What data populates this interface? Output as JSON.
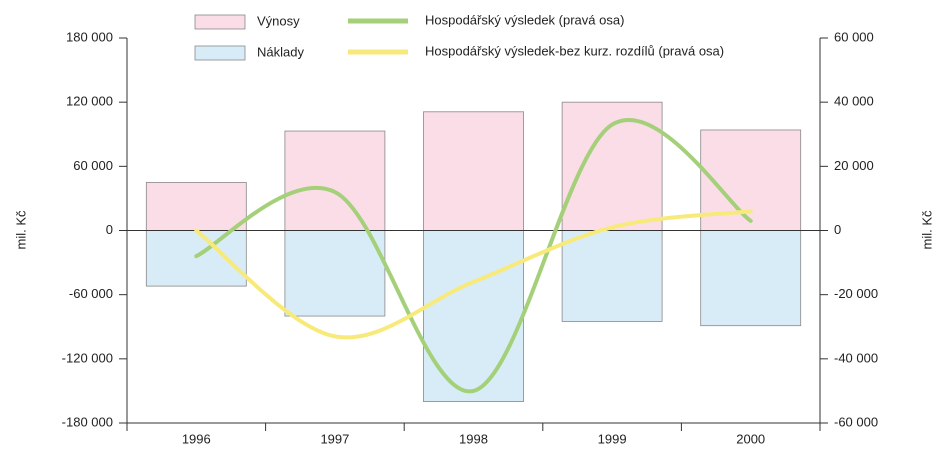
{
  "chart_data": {
    "type": "bar_line",
    "categories": [
      "1996",
      "1997",
      "1998",
      "1999",
      "2000"
    ],
    "series": [
      {
        "name": "Výnosy",
        "type": "bar",
        "color": "#fbdde8",
        "values": [
          45000,
          93000,
          111000,
          120000,
          94000
        ]
      },
      {
        "name": "Náklady",
        "type": "bar",
        "color": "#d8ecf8",
        "values": [
          -52000,
          -80000,
          -160000,
          -85000,
          -89000
        ]
      },
      {
        "name": "Hospodářský výsledek (pravá osa)",
        "type": "line",
        "axis": "y2",
        "color": "#a5d07a",
        "values": [
          -8000,
          12000,
          -50000,
          33000,
          3000
        ]
      },
      {
        "name": "Hospodářský výsledek-bez kurz. rozdílů (pravá osa)",
        "type": "line",
        "axis": "y2",
        "color": "#f8ea7a",
        "values": [
          0,
          -33000,
          -16000,
          1000,
          6000
        ]
      }
    ],
    "ylabel": "mil. Kč",
    "y2label": "mil. Kč",
    "ylim": [
      -180000,
      180000
    ],
    "yticks": [
      {
        "value": -180000,
        "label": "-180 000"
      },
      {
        "value": -120000,
        "label": "-120 000"
      },
      {
        "value": -60000,
        "label": "-60 000"
      },
      0,
      {
        "value": 60000,
        "label": "60 000"
      },
      {
        "value": 120000,
        "label": "120 000"
      },
      {
        "value": 180000,
        "label": "180 000"
      }
    ],
    "y2lim": [
      -60000,
      60000
    ],
    "y2ticks": [
      {
        "value": -60000,
        "label": "-60 000"
      },
      {
        "value": -40000,
        "label": "-40 000"
      },
      {
        "value": -20000,
        "label": "-20 000"
      },
      0,
      {
        "value": 20000,
        "label": "20 000"
      },
      {
        "value": 40000,
        "label": "40 000"
      },
      {
        "value": 60000,
        "label": "60 000"
      }
    ]
  }
}
